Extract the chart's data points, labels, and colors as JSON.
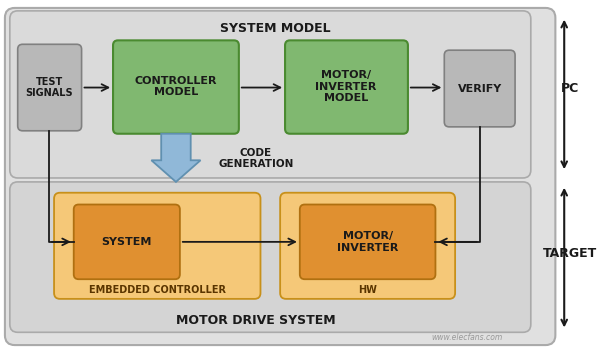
{
  "fig_width": 6.0,
  "fig_height": 3.53,
  "dpi": 100,
  "bg_white": "#ffffff",
  "outer_bg": "#e0e0e0",
  "section_bg": "#d4d4d4",
  "green_fill": "#80b870",
  "green_edge": "#4a8a30",
  "orange_light": "#f5c878",
  "orange_dark": "#e09030",
  "orange_edge_light": "#c8901a",
  "orange_edge_dark": "#b07010",
  "gray_fill": "#b8b8b8",
  "gray_edge": "#808080",
  "blue_arrow_fill": "#90b8d8",
  "blue_arrow_edge": "#6090b0",
  "arrow_color": "#1a1a1a",
  "text_dark": "#1a1a1a",
  "text_label": "#333333",
  "title_sm": "SYSTEM MODEL",
  "title_mds": "MOTOR DRIVE SYSTEM",
  "lbl_pc": "PC",
  "lbl_target": "TARGET",
  "lbl_code_gen": "CODE\nGENERATION",
  "lbl_test": "TEST\nSIGNALS",
  "lbl_ctrl": "CONTROLLER\nMODEL",
  "lbl_motor_inv_model": "MOTOR/\nINVERTER\nMODEL",
  "lbl_verify": "VERIFY",
  "lbl_system": "SYSTEM",
  "lbl_motor_inv": "MOTOR/\nINVERTER",
  "lbl_emb_ctrl": "EMBEDDED CONTROLLER",
  "lbl_hw": "HW",
  "watermark": "www.elecfans.com"
}
